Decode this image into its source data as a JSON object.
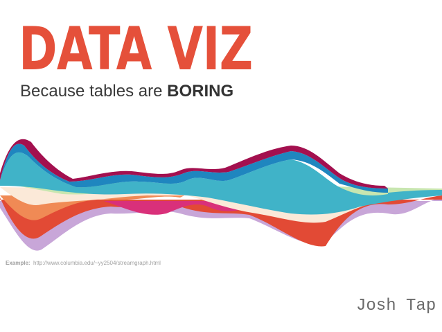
{
  "slide": {
    "title": "DATA VIZ",
    "subtitle_text": "Because tables are ",
    "subtitle_bold": "BORING",
    "example_label": "Example:",
    "example_url": "http://www.columbia.edu/~yy2504/streamgraph.html",
    "author": "Josh Tap"
  },
  "colors": {
    "title": "#e5503a",
    "stream_layers": [
      "#c8a6d8",
      "#e24a35",
      "#f08a55",
      "#d9307a",
      "#fbe9d8",
      "#c8e6b0",
      "#40b3c8",
      "#1f86bf",
      "#a3104f"
    ]
  }
}
